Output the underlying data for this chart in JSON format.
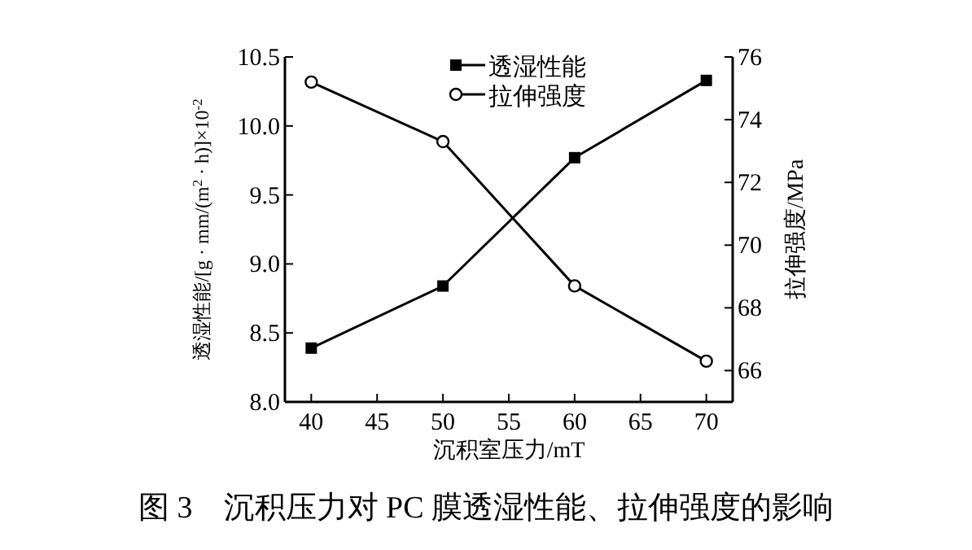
{
  "chart_data": {
    "type": "line",
    "xlabel": "沉积室压力/mT",
    "ylabel": "透湿性能/[g · mm/(m$^{2}$ · h)]×10$^{-2}$",
    "y2label": "拉伸强度/MPa",
    "x": [
      40,
      50,
      60,
      70
    ],
    "series": [
      {
        "name": "透湿性能",
        "color": "#000000",
        "marker": "square",
        "values": [
          8.39,
          8.84,
          9.77,
          10.33
        ]
      },
      {
        "name": "拉伸强度",
        "color": "#000000",
        "marker": "circle",
        "axis": "y2",
        "values": [
          75.2,
          73.3,
          68.7,
          66.3
        ]
      }
    ],
    "xlim": [
      38,
      72
    ],
    "xticks": [
      40,
      45,
      50,
      55,
      60,
      65,
      70
    ],
    "ylim": [
      8.0,
      10.5
    ],
    "yticks": [
      {
        "value": 8.0,
        "label": "8.0"
      },
      {
        "value": 8.5,
        "label": "8.5"
      },
      {
        "value": 9.0,
        "label": "9.0"
      },
      {
        "value": 9.5,
        "label": "9.5"
      },
      {
        "value": 10.0,
        "label": "10.0"
      },
      {
        "value": 10.5,
        "label": "10.5"
      }
    ],
    "y2lim": [
      65,
      76
    ],
    "y2ticks": [
      66,
      68,
      70,
      72,
      74,
      76
    ],
    "legend": "top right",
    "grid": false,
    "line_style": "solid",
    "annotations": [
      "图 3　沉积压力对 PC 膜透湿性能、拉伸强度的影响"
    ]
  }
}
